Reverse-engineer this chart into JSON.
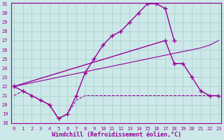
{
  "xlabel": "Windchill (Refroidissement éolien,°C)",
  "bg_color": "#cce8e8",
  "grid_color": "#aacccc",
  "line_color": "#990099",
  "xmin": 0,
  "xmax": 23,
  "ymin": 18,
  "ymax": 31,
  "x_hours": [
    0,
    1,
    2,
    3,
    4,
    5,
    6,
    7,
    8,
    9,
    10,
    11,
    12,
    13,
    14,
    15,
    16,
    17,
    18,
    19,
    20,
    21,
    22,
    23
  ],
  "line_dip": [
    21.0,
    21.5,
    21.0,
    20.5,
    20.0,
    18.5,
    19.0,
    20.5,
    21.0,
    21.0,
    21.0,
    21.0,
    21.0,
    21.0,
    21.0,
    21.0,
    21.0,
    21.0,
    21.0,
    21.0,
    21.0,
    21.0,
    21.0,
    21.0
  ],
  "line_diag": [
    22.0,
    22.2,
    22.4,
    22.6,
    22.8,
    23.0,
    23.2,
    23.4,
    23.6,
    23.8,
    24.0,
    24.2,
    24.4,
    24.6,
    24.8,
    25.0,
    25.2,
    25.4,
    25.6,
    25.8,
    26.0,
    26.2,
    26.5,
    27.0
  ],
  "line_curve_x": [
    0,
    1,
    2,
    3,
    4,
    5,
    6,
    7,
    8,
    9,
    10,
    11,
    12,
    13,
    14,
    15,
    16,
    17,
    18
  ],
  "line_curve_y": [
    22.0,
    21.5,
    21.0,
    20.5,
    20.0,
    18.5,
    19.0,
    21.0,
    23.5,
    25.0,
    26.5,
    27.5,
    28.0,
    29.0,
    30.0,
    31.0,
    31.0,
    30.5,
    27.0
  ],
  "line_right_x": [
    0,
    17,
    18,
    19,
    20,
    21,
    22,
    23
  ],
  "line_right_y": [
    22.0,
    27.0,
    24.5,
    24.5,
    23.0,
    21.5,
    21.0,
    21.0
  ]
}
